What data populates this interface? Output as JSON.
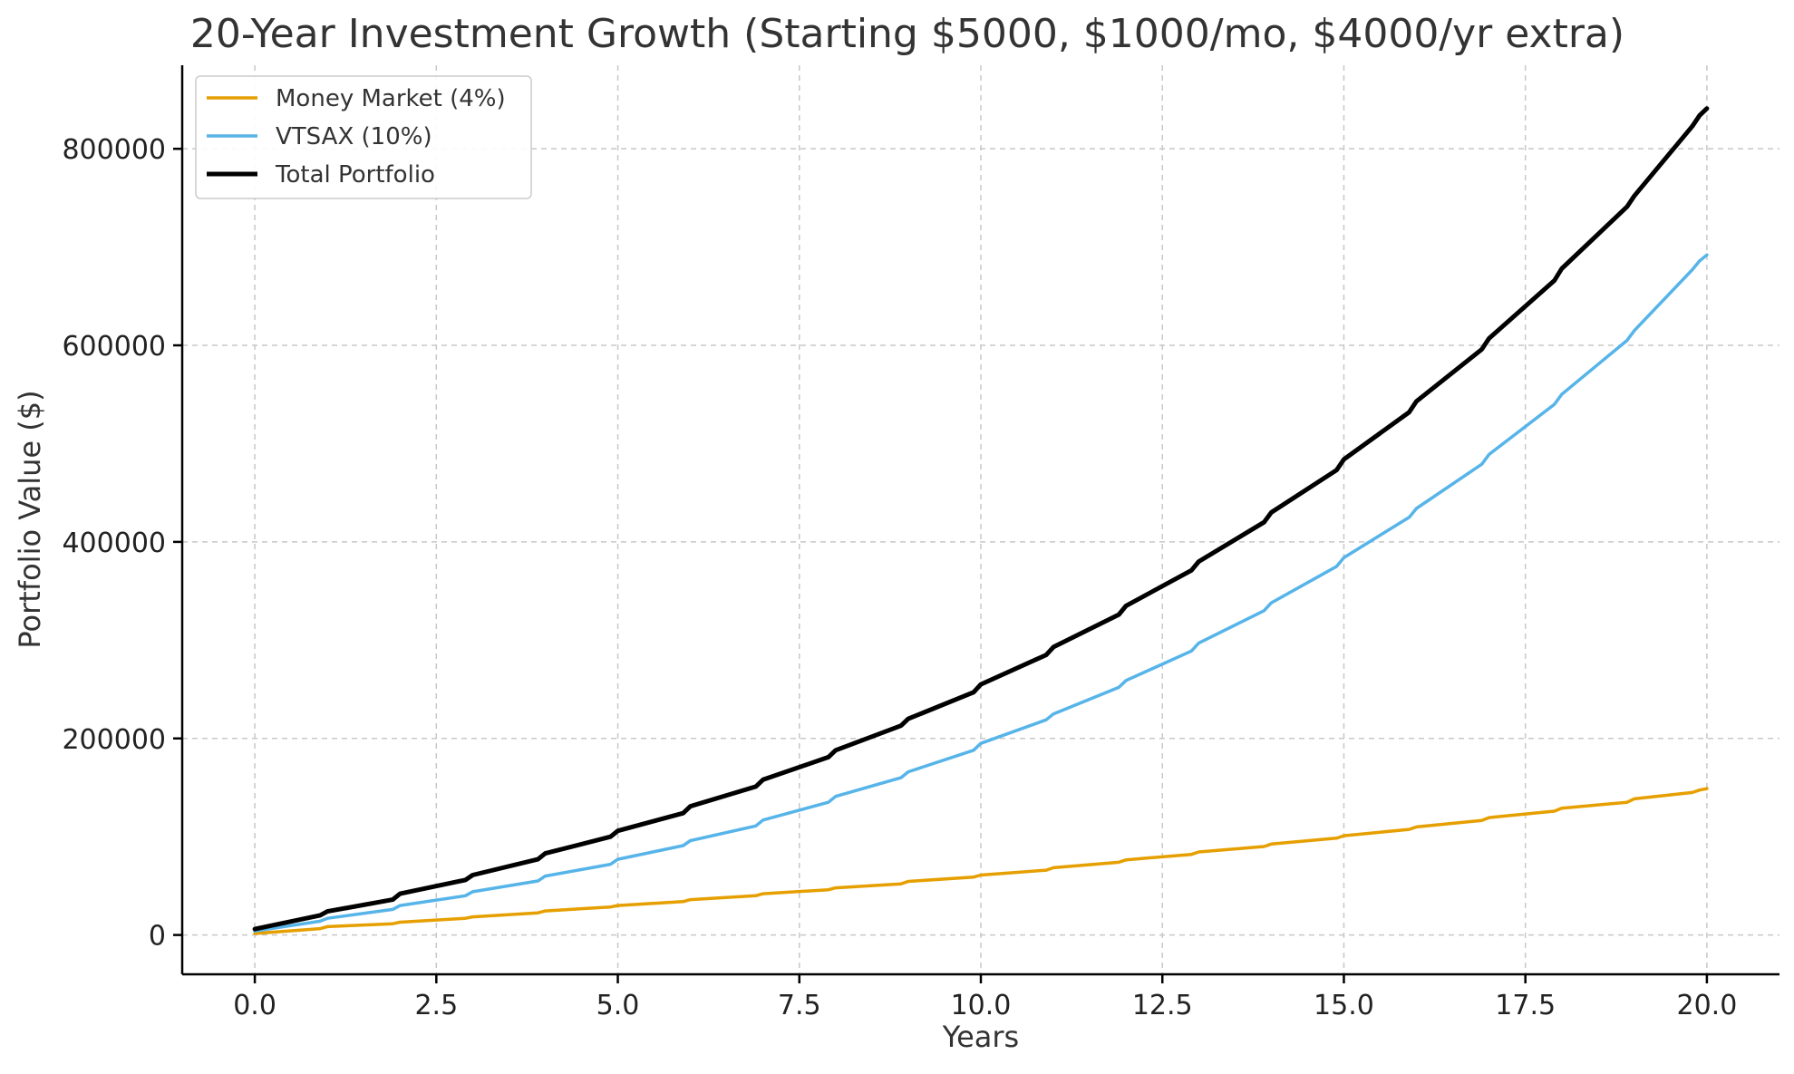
{
  "chart_data": {
    "type": "line",
    "title": "20-Year Investment Growth (Starting $5000, $1000/mo, $4000/yr extra)",
    "xlabel": "Years",
    "ylabel": "Portfolio Value ($)",
    "xlim": [
      -1.0,
      21.0
    ],
    "ylim": [
      -40000,
      885000
    ],
    "xticks": [
      0.0,
      2.5,
      5.0,
      7.5,
      10.0,
      12.5,
      15.0,
      17.5,
      20.0
    ],
    "xtick_labels": [
      "0.0",
      "2.5",
      "5.0",
      "7.5",
      "10.0",
      "12.5",
      "15.0",
      "17.5",
      "20.0"
    ],
    "yticks": [
      0,
      200000,
      400000,
      600000,
      800000
    ],
    "ytick_labels": [
      "0",
      "200000",
      "400000",
      "600000",
      "800000"
    ],
    "grid": true,
    "legend_position": "top-left",
    "x": [
      0,
      0.9,
      1,
      1.9,
      2,
      2.9,
      3,
      3.9,
      4,
      4.9,
      5,
      5.9,
      6,
      6.9,
      7,
      7.9,
      8,
      8.9,
      9,
      9.9,
      10,
      10.9,
      11,
      11.9,
      12,
      12.9,
      13,
      13.9,
      14,
      14.9,
      15,
      15.9,
      16,
      16.9,
      17,
      17.9,
      18,
      18.9,
      19,
      19.8,
      19.9,
      20
    ],
    "series": [
      {
        "name": "Money Market (4%)",
        "color": "#E69F00",
        "values": [
          1500,
          6500,
          8500,
          11500,
          13000,
          17000,
          18500,
          22500,
          24500,
          28500,
          30000,
          34000,
          36000,
          40000,
          42000,
          46000,
          48000,
          52000,
          54500,
          59000,
          61000,
          66000,
          68500,
          74000,
          76500,
          82000,
          84500,
          90000,
          92500,
          98500,
          101000,
          107500,
          110000,
          116500,
          119500,
          126000,
          129000,
          135000,
          138500,
          145000,
          147500,
          149000
        ]
      },
      {
        "name": "VTSAX (10%)",
        "color": "#56B4E9",
        "values": [
          4000,
          14000,
          17000,
          26000,
          30000,
          40000,
          44000,
          55000,
          60000,
          72000,
          77000,
          91000,
          96000,
          111000,
          117000,
          135000,
          141000,
          160000,
          166000,
          188000,
          195000,
          219000,
          225000,
          252000,
          259000,
          289000,
          297000,
          330000,
          338000,
          375000,
          384000,
          425000,
          434000,
          479000,
          489000,
          540000,
          550000,
          605000,
          615000,
          677000,
          686000,
          692000
        ]
      },
      {
        "name": "Total Portfolio",
        "color": "#000000",
        "values": [
          6000,
          20000,
          24000,
          36000,
          42000,
          56000,
          61000,
          77000,
          83000,
          100000,
          106000,
          124000,
          131000,
          151000,
          158000,
          181000,
          188000,
          213000,
          220000,
          247000,
          255000,
          285000,
          293000,
          326000,
          335000,
          371000,
          380000,
          420000,
          430000,
          473000,
          484000,
          532000,
          543000,
          596000,
          607000,
          666000,
          678000,
          741000,
          752000,
          823000,
          834000,
          841000
        ]
      }
    ]
  }
}
